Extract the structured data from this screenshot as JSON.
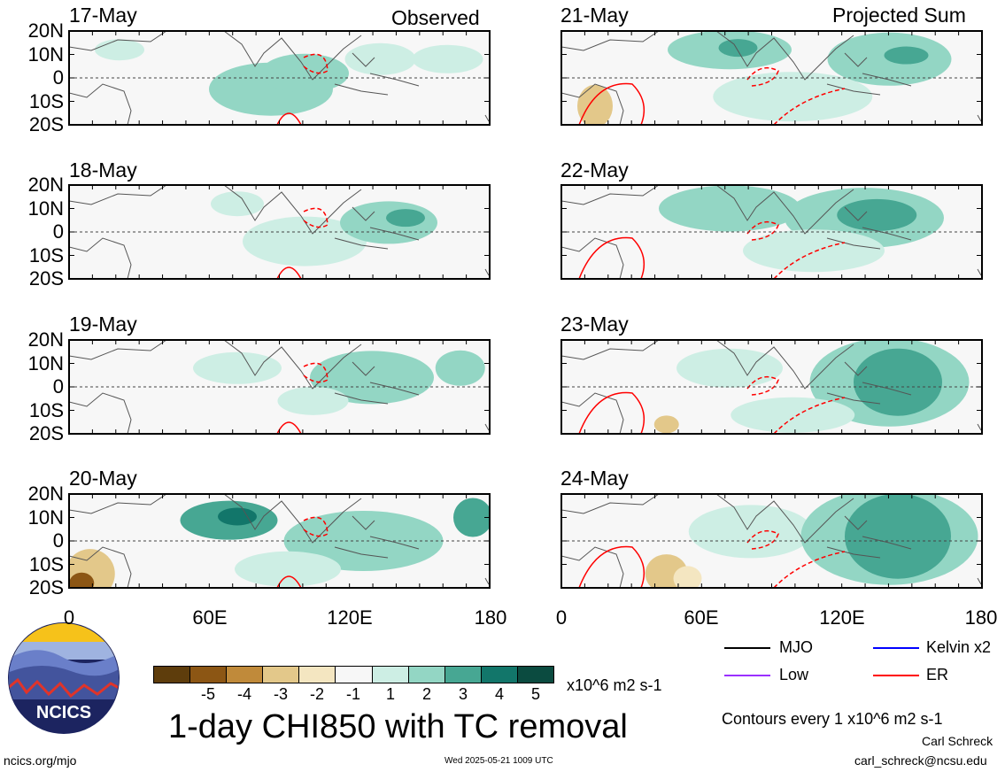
{
  "panels": [
    {
      "date": "17-May",
      "label": "Observed"
    },
    {
      "date": "18-May",
      "label": ""
    },
    {
      "date": "19-May",
      "label": ""
    },
    {
      "date": "20-May",
      "label": ""
    },
    {
      "date": "21-May",
      "label": "Projected Sum"
    },
    {
      "date": "22-May",
      "label": ""
    },
    {
      "date": "23-May",
      "label": ""
    },
    {
      "date": "24-May",
      "label": ""
    }
  ],
  "lat_labels": [
    "20N",
    "10N",
    "0",
    "10S",
    "20S"
  ],
  "lon_labels": [
    "0",
    "60E",
    "120E",
    "180"
  ],
  "colorbar": {
    "labels": [
      "-5",
      "-4",
      "-3",
      "-2",
      "-1",
      "1",
      "2",
      "3",
      "4",
      "5"
    ],
    "colors": [
      "#5e3d0c",
      "#8c5614",
      "#c08a3a",
      "#e3c88a",
      "#f4e6c1",
      "#f7f7f7",
      "#cdeee4",
      "#93d6c4",
      "#47a793",
      "#12766a",
      "#0b4b40"
    ],
    "units": "x10^6 m2 s-1"
  },
  "title": "1-day CHI850 with TC removal",
  "legend": {
    "items": [
      {
        "label": "MJO",
        "color": "#000000"
      },
      {
        "label": "Kelvin x2",
        "color": "#0000ff"
      },
      {
        "label": "Low",
        "color": "#9b30ff"
      },
      {
        "label": "ER",
        "color": "#ff0000"
      }
    ],
    "contour_note": "Contours every 1 x10^6 m2 s-1"
  },
  "logo": {
    "text": "NCICS"
  },
  "footer": {
    "url": "ncics.org/mjo",
    "timestamp": "Wed 2025-05-21 1009 UTC",
    "author": "Carl Schreck",
    "email": "carl_schreck@ncsu.edu"
  }
}
